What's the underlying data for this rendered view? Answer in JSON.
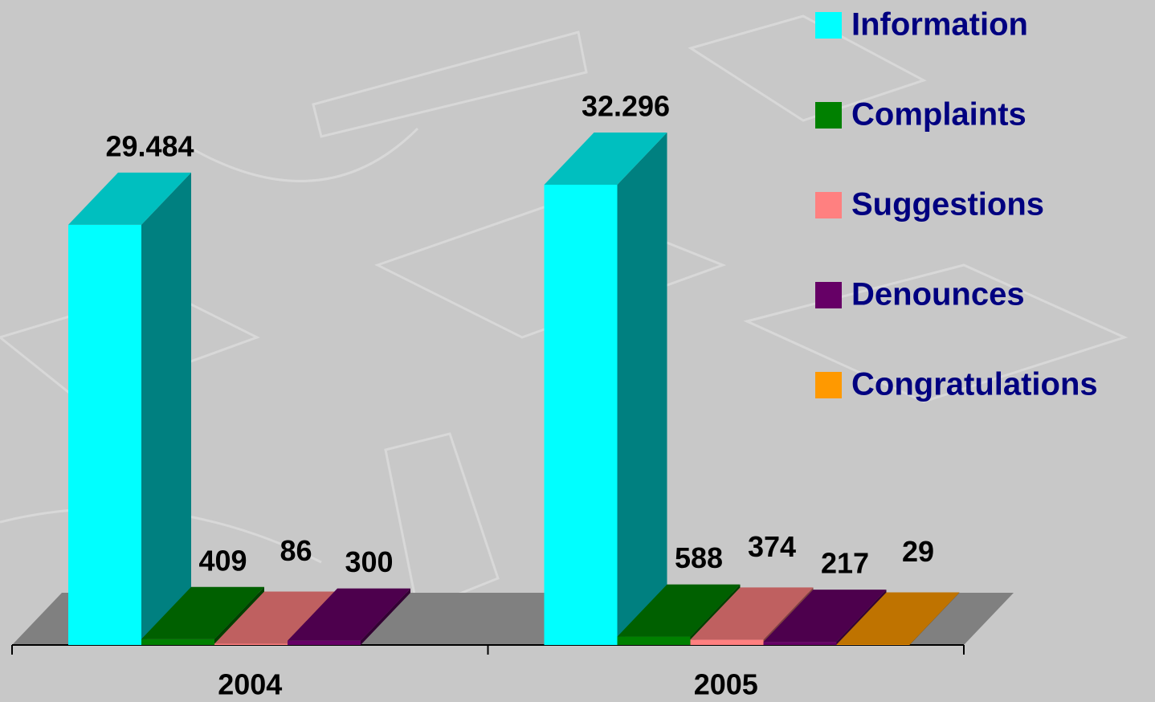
{
  "chart_data": {
    "type": "bar3d",
    "categories": [
      "2004",
      "2005"
    ],
    "series": [
      {
        "name": "Information",
        "color": "#00ffff",
        "values": [
          29484,
          32296
        ],
        "value_labels": [
          "29.484",
          "32.296"
        ]
      },
      {
        "name": "Complaints",
        "color": "#008000",
        "values": [
          409,
          588
        ]
      },
      {
        "name": "Suggestions",
        "color": "#ff8080",
        "values": [
          86,
          374
        ]
      },
      {
        "name": "Denounces",
        "color": "#660066",
        "values": [
          300,
          217
        ]
      },
      {
        "name": "Congratulations",
        "color": "#ff9900",
        "values": [
          null,
          29
        ]
      }
    ],
    "legend": "right"
  }
}
